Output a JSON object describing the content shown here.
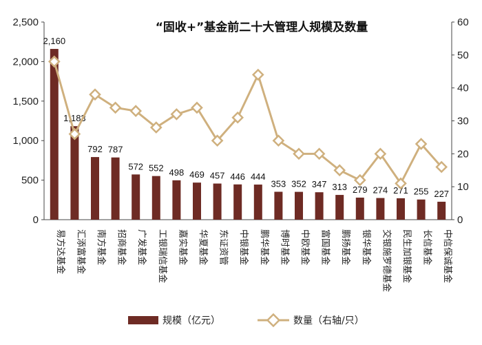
{
  "chart_data": {
    "type": "bar+line",
    "title": "“固收+”基金前二十大管理人规模及数量",
    "categories": [
      "易方达基金",
      "汇添富基金",
      "南方基金",
      "招商基金",
      "广发基金",
      "工银瑞信基金",
      "嘉实基金",
      "华夏基金",
      "东证资管",
      "中银基金",
      "鹏华基金",
      "博时基金",
      "中欧基金",
      "富国基金",
      "鹏扬基金",
      "银华基金",
      "交银施罗德基金",
      "民生加银基金",
      "长信基金",
      "中信保诚基金"
    ],
    "series": [
      {
        "name": "规模（亿元）",
        "type": "bar",
        "axis": "left",
        "color": "#6e2b24",
        "values": [
          2160,
          1183,
          792,
          787,
          572,
          552,
          498,
          469,
          457,
          446,
          444,
          353,
          352,
          347,
          313,
          279,
          274,
          271,
          255,
          227
        ],
        "labels": [
          "2,160",
          "1,183",
          "792",
          "787",
          "572",
          "552",
          "498",
          "469",
          "457",
          "446",
          "444",
          "353",
          "352",
          "347",
          "313",
          "279",
          "274",
          "271",
          "255",
          "227"
        ]
      },
      {
        "name": "数量（右轴/只）",
        "type": "line",
        "axis": "right",
        "color": "#cfb07e",
        "values": [
          48,
          26,
          38,
          34,
          33,
          28,
          32,
          34,
          24,
          31,
          44,
          24,
          20,
          20,
          15,
          12,
          20,
          11,
          23,
          16
        ]
      }
    ],
    "y_left": {
      "min": 0,
      "max": 2500,
      "ticks": [
        0,
        500,
        1000,
        1500,
        2000,
        2500
      ],
      "tick_labels": [
        "0",
        "500",
        "1,000",
        "1,500",
        "2,000",
        "2,500"
      ]
    },
    "y_right": {
      "min": 0,
      "max": 60,
      "ticks": [
        0,
        10,
        20,
        30,
        40,
        50,
        60
      ],
      "tick_labels": [
        "0",
        "10",
        "20",
        "30",
        "40",
        "50",
        "60"
      ]
    },
    "grid": false,
    "legend_position": "bottom"
  }
}
